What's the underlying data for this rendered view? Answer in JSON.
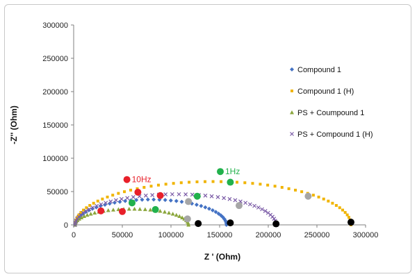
{
  "chart_data": {
    "type": "scatter",
    "xlabel": "Z ' (Ohm)",
    "ylabel": "-Z'' (Ohm)",
    "xlim": [
      0,
      300000
    ],
    "ylim": [
      0,
      300000
    ],
    "xticks": [
      0,
      50000,
      100000,
      150000,
      200000,
      250000,
      300000
    ],
    "yticks": [
      0,
      50000,
      100000,
      150000,
      200000,
      250000,
      300000
    ],
    "grid": false,
    "legend_position": "right",
    "series": [
      {
        "name": "Compound 1",
        "marker": "diamond",
        "color": "#4472c4",
        "semicircle": {
          "x0": 1500,
          "x1": 157000,
          "ymax": 38000,
          "n": 42
        }
      },
      {
        "name": "Compound 1 (H)",
        "marker": "square",
        "color": "#f0b400",
        "semicircle": {
          "x0": 1500,
          "x1": 285000,
          "ymax": 65000,
          "n": 55
        }
      },
      {
        "name": "PS + Coumpound 1",
        "marker": "triangle",
        "color": "#8ba63c",
        "semicircle": {
          "x0": 1500,
          "x1": 118000,
          "ymax": 24000,
          "n": 34
        }
      },
      {
        "name": "PS + Compound 1 (H)",
        "marker": "x",
        "color": "#7a5aa6",
        "semicircle": {
          "x0": 1500,
          "x1": 208000,
          "ymax": 46000,
          "n": 48
        }
      }
    ],
    "highlight_points": [
      {
        "group": "10Hz",
        "color": "#e8202a",
        "points": [
          [
            28000,
            21000
          ],
          [
            50000,
            20000
          ],
          [
            66000,
            49000
          ],
          [
            89000,
            44000
          ]
        ]
      },
      {
        "group": "1Hz",
        "color": "#22b14c",
        "points": [
          [
            60000,
            33000
          ],
          [
            84000,
            23000
          ],
          [
            127000,
            43000
          ],
          [
            161000,
            64000
          ]
        ]
      },
      {
        "group": "gray",
        "color": "#a6a6a6",
        "points": [
          [
            118000,
            35000
          ],
          [
            117000,
            9000
          ],
          [
            170000,
            29000
          ],
          [
            241000,
            43000
          ]
        ]
      },
      {
        "group": "black",
        "color": "#000000",
        "points": [
          [
            128000,
            2000
          ],
          [
            161000,
            3000
          ],
          [
            208000,
            1500
          ],
          [
            285000,
            4000
          ]
        ]
      }
    ],
    "annotations": [
      {
        "text": "10Hz",
        "x": 54000,
        "y": 68000,
        "color": "#e8202a"
      },
      {
        "text": "1Hz",
        "x": 150000,
        "y": 80000,
        "color": "#22b14c"
      }
    ]
  }
}
